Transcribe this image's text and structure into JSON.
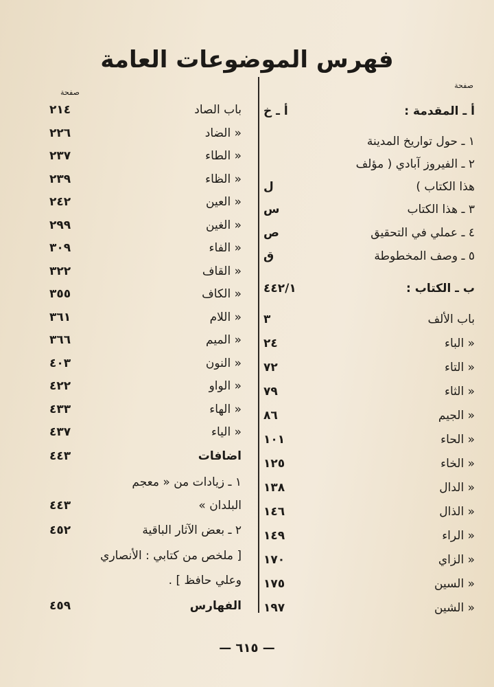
{
  "title": "فهرس الموضوعات العامة",
  "column_header": "صفحة",
  "right_column": [
    {
      "text": "أ ـ المقدمة :",
      "page": "أ ـ خ",
      "bold": true
    },
    {
      "text": "١ ـ حول تواريخ المدينة",
      "page": ""
    },
    {
      "text": "٢ ـ الفيروز آبادي ( مؤلف",
      "page": ""
    },
    {
      "text": "هذا الكتاب )",
      "page": "ل"
    },
    {
      "text": "٣ ـ هذا الكتاب",
      "page": "س"
    },
    {
      "text": "٤ ـ عملي في التحقيق",
      "page": "ص"
    },
    {
      "text": "٥ ـ وصف المخطوطة",
      "page": "ق"
    },
    {
      "text": "ب ـ الكتاب :",
      "page": "٤٤٢/١",
      "bold": true
    },
    {
      "text": "باب الألف",
      "page": "٣"
    },
    {
      "text": "« الباء",
      "page": "٢٤"
    },
    {
      "text": "« التاء",
      "page": "٧٢"
    },
    {
      "text": "« الثاء",
      "page": "٧٩"
    },
    {
      "text": "« الجيم",
      "page": "٨٦"
    },
    {
      "text": "« الحاء",
      "page": "١٠١"
    },
    {
      "text": "« الخاء",
      "page": "١٢٥"
    },
    {
      "text": "« الدال",
      "page": "١٣٨"
    },
    {
      "text": "« الذال",
      "page": "١٤٦"
    },
    {
      "text": "« الراء",
      "page": "١٤٩"
    },
    {
      "text": "« الزاي",
      "page": "١٧٠"
    },
    {
      "text": "« السين",
      "page": "١٧٥"
    },
    {
      "text": "« الشين",
      "page": "١٩٧"
    }
  ],
  "left_column": [
    {
      "text": "باب الصاد",
      "page": "٢١٤"
    },
    {
      "text": "« الضاد",
      "page": "٢٢٦"
    },
    {
      "text": "« الطاء",
      "page": "٢٣٧"
    },
    {
      "text": "« الظاء",
      "page": "٢٣٩"
    },
    {
      "text": "« العين",
      "page": "٢٤٢"
    },
    {
      "text": "« الغين",
      "page": "٢٩٩"
    },
    {
      "text": "« الفاء",
      "page": "٣٠٩"
    },
    {
      "text": "« القاف",
      "page": "٣٢٢"
    },
    {
      "text": "« الكاف",
      "page": "٣٥٥"
    },
    {
      "text": "« اللام",
      "page": "٣٦١"
    },
    {
      "text": "« الميم",
      "page": "٣٦٦"
    },
    {
      "text": "« النون",
      "page": "٤٠٣"
    },
    {
      "text": "« الواو",
      "page": "٤٢٢"
    },
    {
      "text": "« الهاء",
      "page": "٤٣٣"
    },
    {
      "text": "« الياء",
      "page": "٤٣٧"
    },
    {
      "text": "اضافات",
      "page": "٤٤٣",
      "bold": true
    },
    {
      "text": "١ ـ زيادات من « معجم",
      "page": ""
    },
    {
      "text": "البلدان »",
      "page": "٤٤٣"
    },
    {
      "text": "٢ ـ بعض الآثار الباقية",
      "page": "٤٥٢"
    },
    {
      "text": "[ ملخص من كتابي : الأنصاري",
      "page": ""
    },
    {
      "text": "وعلي حافظ ] .",
      "page": ""
    },
    {
      "text": "الفهارس",
      "page": "٤٥٩",
      "bold": true
    }
  ],
  "page_number": "— ٦١٥ —"
}
